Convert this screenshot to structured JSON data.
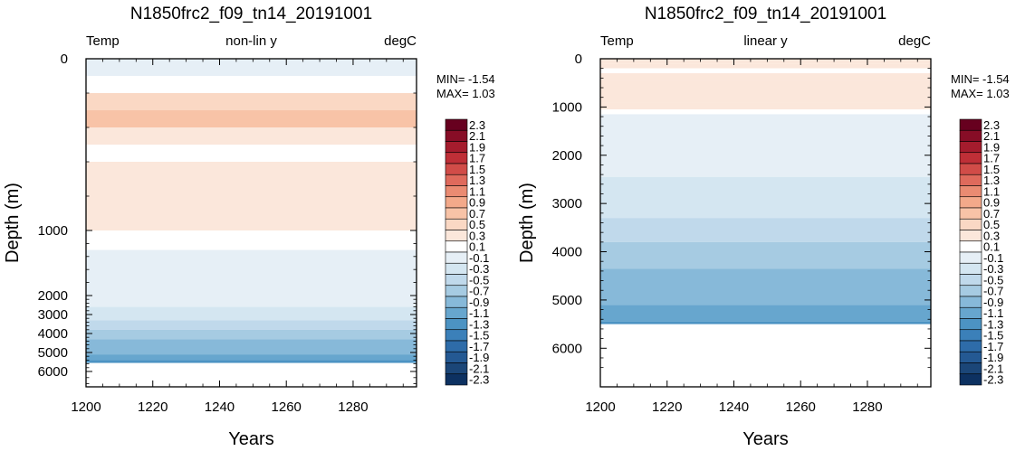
{
  "chart_data": [
    {
      "type": "heatmap",
      "title": "N1850frc2_f09_tn14_20191001",
      "left_label": "Temp",
      "center_label": "non-lin y",
      "right_label": "degC",
      "xlabel": "Years",
      "ylabel": "Depth (m)",
      "xlim": [
        1200,
        1299
      ],
      "x_ticks": [
        1200,
        1220,
        1240,
        1260,
        1280
      ],
      "y_scale": "non-linear",
      "y_ticks": [
        0,
        1000,
        2000,
        3000,
        4000,
        5000,
        6000
      ],
      "min_label": "MIN= -1.54",
      "max_label": "MAX=  1.03",
      "profile": [
        {
          "depth": 0,
          "value": -0.05
        },
        {
          "depth": 100,
          "value": 0.25
        },
        {
          "depth": 200,
          "value": 0.55
        },
        {
          "depth": 300,
          "value": 0.75
        },
        {
          "depth": 400,
          "value": 0.45
        },
        {
          "depth": 500,
          "value": 0.25
        },
        {
          "depth": 600,
          "value": 0.35
        },
        {
          "depth": 700,
          "value": 0.42
        },
        {
          "depth": 800,
          "value": 0.42
        },
        {
          "depth": 900,
          "value": 0.35
        },
        {
          "depth": 1000,
          "value": 0.25
        },
        {
          "depth": 1100,
          "value": 0.15
        },
        {
          "depth": 1300,
          "value": 0.0
        },
        {
          "depth": 2000,
          "value": 0.0
        },
        {
          "depth": 2500,
          "value": 0.0
        },
        {
          "depth": 2600,
          "value": -0.15
        },
        {
          "depth": 3300,
          "value": -0.35
        },
        {
          "depth": 3800,
          "value": -0.55
        },
        {
          "depth": 4300,
          "value": -0.75
        },
        {
          "depth": 5100,
          "value": -0.95
        },
        {
          "depth": 5400,
          "value": -1.15
        },
        {
          "depth": 5500,
          "value": -1.3
        },
        {
          "depth": 5550,
          "value": null
        }
      ]
    },
    {
      "type": "heatmap",
      "title": "N1850frc2_f09_tn14_20191001",
      "left_label": "Temp",
      "center_label": "linear y",
      "right_label": "degC",
      "xlabel": "Years",
      "ylabel": "Depth (m)",
      "xlim": [
        1200,
        1299
      ],
      "x_ticks": [
        1200,
        1220,
        1240,
        1260,
        1280
      ],
      "y_scale": "linear",
      "ylim": [
        0,
        6800
      ],
      "y_ticks": [
        0,
        1000,
        2000,
        3000,
        4000,
        5000,
        6000
      ],
      "min_label": "MIN= -1.54",
      "max_label": "MAX=  1.03",
      "profile": [
        {
          "depth": 0,
          "value": 0.35
        },
        {
          "depth": 100,
          "value": 0.45
        },
        {
          "depth": 200,
          "value": 0.25
        },
        {
          "depth": 300,
          "value": 0.35
        },
        {
          "depth": 450,
          "value": 0.4
        },
        {
          "depth": 900,
          "value": 0.35
        },
        {
          "depth": 1050,
          "value": 0.15
        },
        {
          "depth": 1150,
          "value": 0.0
        },
        {
          "depth": 2450,
          "value": -0.15
        },
        {
          "depth": 3300,
          "value": -0.35
        },
        {
          "depth": 3800,
          "value": -0.55
        },
        {
          "depth": 4350,
          "value": -0.75
        },
        {
          "depth": 5100,
          "value": -0.95
        },
        {
          "depth": 5450,
          "value": -1.15
        },
        {
          "depth": 5500,
          "value": null
        }
      ]
    }
  ],
  "colorbar": {
    "levels": [
      "2.3",
      "2.1",
      "1.9",
      "1.7",
      "1.5",
      "1.3",
      "1.1",
      "0.9",
      "0.7",
      "0.5",
      "0.3",
      "0.1",
      "-0.1",
      "-0.3",
      "-0.5",
      "-0.7",
      "-0.9",
      "-1.1",
      "-1.3",
      "-1.5",
      "-1.7",
      "-1.9",
      "-2.1",
      "-2.3"
    ],
    "colors": [
      "#67001f",
      "#870d26",
      "#a51c2d",
      "#bf2f37",
      "#d14c48",
      "#df6a5c",
      "#ea8b72",
      "#f3a98a",
      "#f8c3a7",
      "#fad8c4",
      "#fbe7db",
      "#ffffff",
      "#e6eff6",
      "#d4e6f1",
      "#c0d9eb",
      "#a6cbe2",
      "#87b9d9",
      "#67a6ce",
      "#4c93c3",
      "#3b80b9",
      "#2e6ca9",
      "#245993",
      "#1b4678",
      "#0d3161"
    ]
  }
}
